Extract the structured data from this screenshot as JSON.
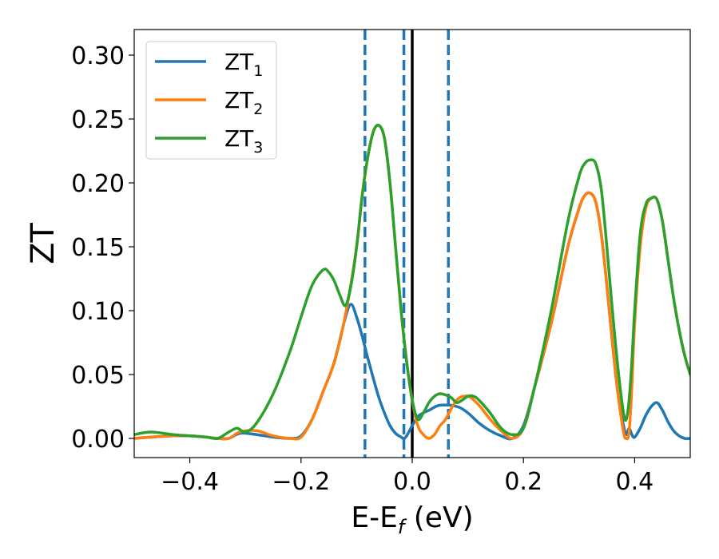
{
  "chart_data": {
    "type": "line",
    "xlabel": {
      "main": "E-E",
      "sub": "f",
      "suffix": " (eV)"
    },
    "ylabel": "ZT",
    "xlim": [
      -0.5,
      0.5
    ],
    "ylim": [
      -0.015,
      0.32
    ],
    "grid": false,
    "legend_position": "top-left",
    "x_ticks": [
      {
        "value": -0.4,
        "label": "−0.4"
      },
      {
        "value": -0.2,
        "label": "−0.2"
      },
      {
        "value": 0.0,
        "label": "0.0"
      },
      {
        "value": 0.2,
        "label": "0.2"
      },
      {
        "value": 0.4,
        "label": "0.4"
      }
    ],
    "y_ticks": [
      {
        "value": 0.0,
        "label": "0.00"
      },
      {
        "value": 0.05,
        "label": "0.05"
      },
      {
        "value": 0.1,
        "label": "0.10"
      },
      {
        "value": 0.15,
        "label": "0.15"
      },
      {
        "value": 0.2,
        "label": "0.20"
      },
      {
        "value": 0.25,
        "label": "0.25"
      },
      {
        "value": 0.3,
        "label": "0.30"
      }
    ],
    "vertical_lines": [
      {
        "x": -0.085,
        "style": "dashed",
        "color": "#1f77b4"
      },
      {
        "x": -0.015,
        "style": "dashed",
        "color": "#1f77b4"
      },
      {
        "x": 0.065,
        "style": "dashed",
        "color": "#1f77b4"
      },
      {
        "x": 0.0,
        "style": "solid",
        "color": "#000000"
      }
    ],
    "series": [
      {
        "name": "ZT",
        "name_sub": "1",
        "color": "#1f77b4",
        "x": [
          -0.5,
          -0.47,
          -0.43,
          -0.4,
          -0.37,
          -0.35,
          -0.33,
          -0.31,
          -0.28,
          -0.25,
          -0.22,
          -0.2,
          -0.18,
          -0.16,
          -0.14,
          -0.12,
          -0.11,
          -0.1,
          -0.09,
          -0.08,
          -0.07,
          -0.06,
          -0.05,
          -0.04,
          -0.03,
          -0.02,
          -0.015,
          -0.01,
          0.0,
          0.01,
          0.02,
          0.03,
          0.05,
          0.08,
          0.1,
          0.12,
          0.14,
          0.16,
          0.18,
          0.2,
          0.22,
          0.25,
          0.28,
          0.3,
          0.31,
          0.32,
          0.33,
          0.34,
          0.35,
          0.36,
          0.37,
          0.38,
          0.385,
          0.39,
          0.395,
          0.4,
          0.41,
          0.42,
          0.43,
          0.44,
          0.45,
          0.46,
          0.47,
          0.48,
          0.49,
          0.5
        ],
        "y": [
          0.0,
          0.001,
          0.002,
          0.002,
          0.001,
          0.0,
          0.0,
          0.004,
          0.003,
          0.001,
          0.0,
          0.002,
          0.015,
          0.037,
          0.06,
          0.095,
          0.105,
          0.095,
          0.08,
          0.063,
          0.047,
          0.032,
          0.02,
          0.01,
          0.004,
          0.001,
          0.0,
          0.002,
          0.01,
          0.017,
          0.02,
          0.022,
          0.026,
          0.025,
          0.02,
          0.012,
          0.006,
          0.002,
          0.0,
          0.01,
          0.04,
          0.09,
          0.15,
          0.18,
          0.19,
          0.192,
          0.185,
          0.16,
          0.12,
          0.075,
          0.035,
          0.01,
          0.003,
          0.008,
          0.003,
          0.001,
          0.008,
          0.018,
          0.025,
          0.028,
          0.022,
          0.013,
          0.006,
          0.002,
          0.0,
          0.0
        ]
      },
      {
        "name": "ZT",
        "name_sub": "2",
        "color": "#ff7f0e",
        "x": [
          -0.5,
          -0.47,
          -0.43,
          -0.4,
          -0.37,
          -0.35,
          -0.33,
          -0.31,
          -0.28,
          -0.25,
          -0.22,
          -0.2,
          -0.18,
          -0.16,
          -0.14,
          -0.12,
          -0.1,
          -0.09,
          -0.08,
          -0.07,
          -0.06,
          -0.05,
          -0.04,
          -0.03,
          -0.02,
          -0.01,
          0.0,
          0.01,
          0.02,
          0.03,
          0.04,
          0.05,
          0.06,
          0.08,
          0.1,
          0.12,
          0.14,
          0.16,
          0.18,
          0.2,
          0.22,
          0.25,
          0.28,
          0.3,
          0.31,
          0.32,
          0.33,
          0.34,
          0.35,
          0.36,
          0.37,
          0.38,
          0.385,
          0.39,
          0.395,
          0.4,
          0.41,
          0.42,
          0.43,
          0.44,
          0.45,
          0.46,
          0.47,
          0.48,
          0.49,
          0.5
        ],
        "y": [
          0.0,
          0.001,
          0.002,
          0.002,
          0.001,
          0.0,
          0.0,
          0.005,
          0.006,
          0.002,
          0.0,
          0.001,
          0.015,
          0.037,
          0.06,
          0.097,
          0.15,
          0.19,
          0.22,
          0.24,
          0.245,
          0.235,
          0.2,
          0.15,
          0.1,
          0.06,
          0.03,
          0.01,
          0.003,
          0.0,
          0.003,
          0.01,
          0.015,
          0.03,
          0.033,
          0.026,
          0.015,
          0.006,
          0.0,
          0.008,
          0.04,
          0.09,
          0.15,
          0.18,
          0.19,
          0.192,
          0.185,
          0.16,
          0.12,
          0.075,
          0.035,
          0.005,
          0.0,
          0.005,
          0.04,
          0.09,
          0.15,
          0.18,
          0.188,
          0.187,
          0.17,
          0.14,
          0.11,
          0.085,
          0.065,
          0.05
        ]
      },
      {
        "name": "ZT",
        "name_sub": "3",
        "color": "#2ca02c",
        "x": [
          -0.5,
          -0.47,
          -0.43,
          -0.4,
          -0.37,
          -0.35,
          -0.33,
          -0.315,
          -0.3,
          -0.28,
          -0.25,
          -0.22,
          -0.2,
          -0.18,
          -0.16,
          -0.15,
          -0.14,
          -0.13,
          -0.12,
          -0.11,
          -0.1,
          -0.09,
          -0.08,
          -0.07,
          -0.06,
          -0.05,
          -0.04,
          -0.03,
          -0.02,
          -0.01,
          0.0,
          0.01,
          0.02,
          0.03,
          0.04,
          0.05,
          0.06,
          0.07,
          0.08,
          0.09,
          0.1,
          0.11,
          0.12,
          0.14,
          0.16,
          0.18,
          0.2,
          0.22,
          0.25,
          0.28,
          0.3,
          0.31,
          0.32,
          0.33,
          0.34,
          0.35,
          0.36,
          0.37,
          0.38,
          0.385,
          0.39,
          0.395,
          0.4,
          0.41,
          0.42,
          0.43,
          0.44,
          0.45,
          0.46,
          0.47,
          0.48,
          0.49,
          0.5
        ],
        "y": [
          0.003,
          0.005,
          0.003,
          0.002,
          0.001,
          0.0,
          0.005,
          0.008,
          0.005,
          0.012,
          0.035,
          0.068,
          0.095,
          0.12,
          0.132,
          0.13,
          0.123,
          0.112,
          0.104,
          0.12,
          0.15,
          0.19,
          0.22,
          0.24,
          0.245,
          0.235,
          0.2,
          0.15,
          0.1,
          0.06,
          0.03,
          0.015,
          0.02,
          0.028,
          0.033,
          0.035,
          0.034,
          0.032,
          0.028,
          0.03,
          0.033,
          0.033,
          0.03,
          0.02,
          0.008,
          0.003,
          0.008,
          0.04,
          0.1,
          0.17,
          0.205,
          0.215,
          0.218,
          0.215,
          0.195,
          0.15,
          0.1,
          0.055,
          0.02,
          0.015,
          0.03,
          0.06,
          0.1,
          0.16,
          0.183,
          0.188,
          0.187,
          0.17,
          0.14,
          0.11,
          0.085,
          0.065,
          0.05
        ]
      }
    ]
  }
}
